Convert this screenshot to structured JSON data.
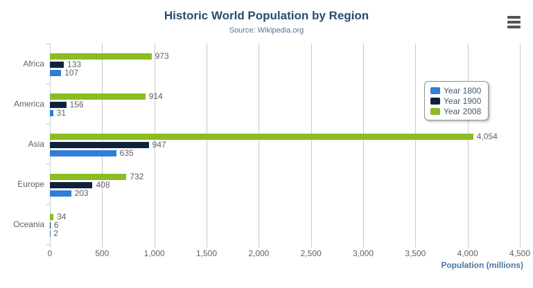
{
  "chart_data": {
    "type": "bar",
    "orientation": "horizontal",
    "title": "Historic World Population by Region",
    "subtitle": "Source: Wikipedia.org",
    "categories": [
      "Africa",
      "America",
      "Asia",
      "Europe",
      "Oceania"
    ],
    "series": [
      {
        "name": "Year 1800",
        "color": "#2f7ed8",
        "values": [
          107,
          31,
          635,
          203,
          2
        ]
      },
      {
        "name": "Year 1900",
        "color": "#0d233a",
        "values": [
          133,
          156,
          947,
          408,
          6
        ]
      },
      {
        "name": "Year 2008",
        "color": "#8bbc21",
        "values": [
          973,
          914,
          4054,
          732,
          34
        ]
      }
    ],
    "series_display_order_top_to_bottom": [
      "Year 2008",
      "Year 1900",
      "Year 1800"
    ],
    "data_labels": true,
    "xlabel": "Population (millions)",
    "xlim": [
      0,
      4500
    ],
    "xticks": [
      0,
      500,
      1000,
      1500,
      2000,
      2500,
      3000,
      3500,
      4000,
      4500
    ],
    "grid": true,
    "legend_position": "middle-right"
  },
  "export_menu": {
    "icon": "hamburger-menu-icon"
  },
  "colors": {
    "title_text": "#274b6d",
    "subtitle_text": "#4d759e",
    "axis_title_text": "#4d759e",
    "label_text": "#606060",
    "grid_line": "#c8c8c8",
    "axis_line": "#c0d0e0",
    "legend_border": "#909090",
    "legend_text": "#3e576f",
    "menu_icon": "#555555",
    "background": "#ffffff"
  }
}
